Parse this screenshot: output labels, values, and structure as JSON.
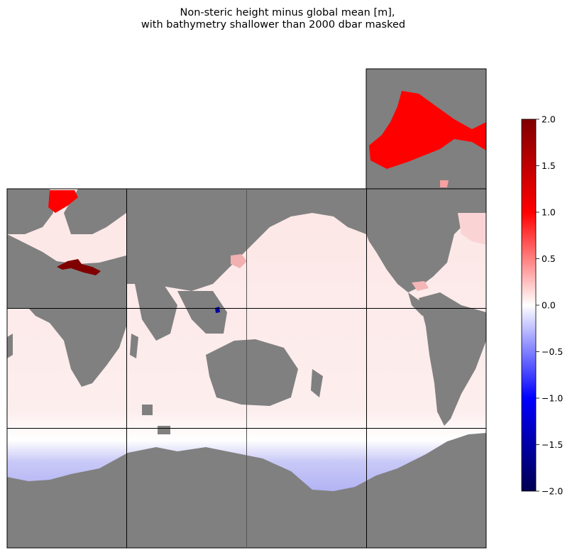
{
  "chart_data": {
    "type": "heatmap",
    "title": "Non-steric height minus global mean [m],",
    "subtitle": "with bathymetry shallower than 2000 dbar masked",
    "colorbar": {
      "cmap": "seismic",
      "vmin": -2.0,
      "vmax": 2.0,
      "ticks": [
        2.0,
        1.5,
        1.0,
        0.5,
        0.0,
        -0.5,
        -1.0,
        -1.5,
        -2.0
      ],
      "tick_labels": [
        "2.0",
        "1.5",
        "1.0",
        "0.5",
        "0.0",
        "−0.5",
        "−1.0",
        "−1.5",
        "−2.0"
      ]
    },
    "mask_color": "#808080",
    "tiles": [
      {
        "row": 0,
        "col": 3,
        "note": "arctic"
      },
      {
        "row": 1,
        "col": 0
      },
      {
        "row": 1,
        "col": 1
      },
      {
        "row": 1,
        "col": 2
      },
      {
        "row": 1,
        "col": 3
      },
      {
        "row": 2,
        "col": 0
      },
      {
        "row": 2,
        "col": 1
      },
      {
        "row": 2,
        "col": 2
      },
      {
        "row": 2,
        "col": 3
      },
      {
        "row": 3,
        "col": 0
      },
      {
        "row": 3,
        "col": 1
      },
      {
        "row": 3,
        "col": 2
      },
      {
        "row": 3,
        "col": 3
      }
    ],
    "regions": [
      {
        "name": "arctic-basin",
        "value": 1.2
      },
      {
        "name": "labrador",
        "value": 1.2
      },
      {
        "name": "mediterranean",
        "value": 2.0
      },
      {
        "name": "north-pacific",
        "value": 0.2
      },
      {
        "name": "tropical-oceans",
        "value": 0.1
      },
      {
        "name": "southern-ocean",
        "value": -0.35
      },
      {
        "name": "sulu-sea",
        "value": -1.8
      }
    ]
  }
}
